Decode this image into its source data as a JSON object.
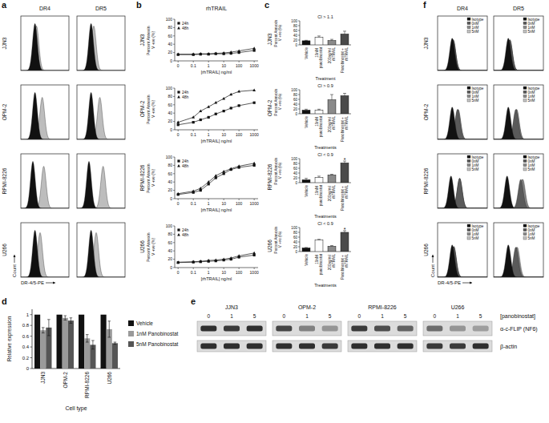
{
  "chart_data": [
    {
      "panel": "a",
      "type": "flow_histogram",
      "columns": [
        "DR4",
        "DR5"
      ],
      "x_label": "DR-4/5-PE",
      "y_label": "Count",
      "log": "x",
      "xlim": [
        1,
        10000
      ],
      "ylim": [
        0,
        110
      ],
      "series": [
        {
          "color": "#111111"
        },
        {
          "color": "#bdbdbd"
        }
      ],
      "rows": [
        {
          "label": "JJN3",
          "histograms": [
            {
              "peaks": [
                15,
                20
              ],
              "heights": [
                95,
                90
              ]
            },
            {
              "peaks": [
                15,
                25
              ],
              "heights": [
                95,
                90
              ]
            }
          ]
        },
        {
          "label": "OPM-2",
          "histograms": [
            {
              "peaks": [
                15,
                60
              ],
              "heights": [
                95,
                85
              ]
            },
            {
              "peaks": [
                15,
                80
              ],
              "heights": [
                95,
                85
              ]
            }
          ]
        },
        {
          "label": "RPMI-8226",
          "histograms": [
            {
              "peaks": [
                10,
                80
              ],
              "heights": [
                95,
                85
              ]
            },
            {
              "peaks": [
                10,
                150
              ],
              "heights": [
                95,
                85
              ]
            }
          ]
        },
        {
          "label": "U266",
          "histograms": [
            {
              "peaks": [
                15,
                40
              ],
              "heights": [
                95,
                90
              ]
            },
            {
              "peaks": [
                15,
                40
              ],
              "heights": [
                95,
                90
              ]
            }
          ]
        }
      ]
    },
    {
      "panel": "b",
      "type": "line",
      "title": "rhTRAIL",
      "x_label": "[rhTRAIL] ng/ml",
      "y_label": "Percent Annexin V +ve (%)",
      "log": "x",
      "xlim": [
        0.006,
        1800
      ],
      "xticks": [
        {
          "value": 0.01,
          "label": "0"
        },
        0.1,
        1,
        10,
        100,
        1000
      ],
      "ylim": [
        0,
        100
      ],
      "yticks": [
        0,
        20,
        40,
        60,
        80,
        100
      ],
      "legend": "upper left",
      "x": [
        0.01,
        0.1,
        0.3,
        1,
        3,
        10,
        30,
        100,
        1000
      ],
      "rows": [
        {
          "label": "JJN3",
          "series": [
            {
              "name": "24h",
              "marker": "square",
              "values": [
                15,
                15,
                16,
                16,
                17,
                17,
                18,
                20,
                25
              ]
            },
            {
              "name": "48h",
              "marker": "triangle",
              "values": [
                16,
                16,
                17,
                17,
                18,
                19,
                21,
                24,
                30
              ]
            }
          ]
        },
        {
          "label": "OPM-2",
          "series": [
            {
              "name": "24h",
              "marker": "square",
              "values": [
                12,
                18,
                24,
                30,
                38,
                45,
                52,
                58,
                65
              ]
            },
            {
              "name": "48h",
              "marker": "triangle",
              "values": [
                18,
                30,
                45,
                55,
                65,
                75,
                85,
                92,
                95
              ]
            }
          ]
        },
        {
          "label": "RPMI-8226",
          "series": [
            {
              "name": "24h",
              "marker": "square",
              "values": [
                10,
                15,
                20,
                35,
                50,
                60,
                70,
                75,
                80
              ]
            },
            {
              "name": "48h",
              "marker": "triangle",
              "values": [
                12,
                18,
                25,
                40,
                55,
                65,
                72,
                78,
                85
              ]
            }
          ]
        },
        {
          "label": "U266",
          "series": [
            {
              "name": "24h",
              "marker": "square",
              "values": [
                12,
                13,
                14,
                15,
                16,
                18,
                20,
                25,
                30
              ]
            },
            {
              "name": "48h",
              "marker": "triangle",
              "values": [
                13,
                14,
                15,
                17,
                18,
                20,
                23,
                28,
                35
              ]
            }
          ]
        }
      ]
    },
    {
      "panel": "c",
      "type": "bar",
      "categories": [
        "Vehicle",
        "10nM panobinostat",
        "200ng/ml rhTRAIL",
        "Panobinostat + rhTRAIL"
      ],
      "colors": [
        "#111111",
        "#ffffff",
        "#8a8a8a",
        "#4a4a4a"
      ],
      "y_label": "Percent Annexin V +ve (%)",
      "ylim": [
        0,
        100
      ],
      "yticks": [
        0,
        20,
        40,
        60,
        80,
        100
      ],
      "rows": [
        {
          "label": "JJN3",
          "ci": "CI > 1.1",
          "x_label": "Treatment",
          "values": [
            17,
            32,
            18,
            45
          ],
          "errors": [
            2,
            5,
            5,
            12
          ]
        },
        {
          "label": "OPM-2",
          "ci": "CI > 0.9",
          "x_label": "Treatments",
          "values": [
            15,
            15,
            58,
            75
          ],
          "errors": [
            4,
            4,
            22,
            10
          ]
        },
        {
          "label": "RPMI-8226",
          "ci": "CI < 0.9",
          "x_label": "Treatments",
          "values": [
            12,
            22,
            32,
            82
          ],
          "errors": [
            6,
            5,
            3,
            8
          ],
          "annotations": [
            null,
            null,
            null,
            "*"
          ]
        },
        {
          "label": "U266",
          "ci": "CI < 0.9",
          "x_label": "Treatments",
          "values": [
            15,
            48,
            22,
            80
          ],
          "errors": [
            2,
            3,
            3,
            7
          ],
          "annotations": [
            null,
            null,
            null,
            "*"
          ]
        }
      ]
    },
    {
      "panel": "d",
      "type": "bar",
      "categories": [
        "JJN3",
        "OPM-2",
        "RPMI-8226",
        "U266"
      ],
      "x_label": "Cell type",
      "y_label": "Relative expression",
      "ylim": [
        0,
        1.1
      ],
      "yticks": [
        0,
        0.2,
        0.4,
        0.6,
        0.8,
        1
      ],
      "legend": "right",
      "series": [
        {
          "name": "Vehicle",
          "color": "#111111",
          "values": [
            1,
            1,
            1,
            1
          ]
        },
        {
          "name": "1nM Panobinostat",
          "color": "#9a9a9a",
          "values": [
            0.71,
            0.94,
            0.56,
            0.73
          ],
          "errors": [
            0.05,
            0.04,
            0.07,
            0.15
          ]
        },
        {
          "name": "5nM Panobinostat",
          "color": "#555555",
          "values": [
            0.76,
            0.89,
            0.44,
            0.47
          ],
          "errors": [
            0.15,
            0.05,
            0.08,
            0.02
          ]
        }
      ]
    },
    {
      "panel": "e",
      "type": "western_blot",
      "lane_title": "[panobinostat]",
      "lanes": [
        0,
        1,
        5
      ],
      "row_labels": [
        "α-c-FLIP (NF6)",
        "β-actin"
      ],
      "groups": [
        {
          "label": "JJN3",
          "bands": [
            [
              0.85,
              0.8,
              0.85
            ],
            [
              0.85,
              0.85,
              0.85
            ]
          ]
        },
        {
          "label": "OPM-2",
          "bands": [
            [
              0.75,
              0.45,
              0.35
            ],
            [
              0.85,
              0.85,
              0.8
            ]
          ]
        },
        {
          "label": "RPMI-8226",
          "bands": [
            [
              0.8,
              0.7,
              0.6
            ],
            [
              0.85,
              0.85,
              0.85
            ]
          ]
        },
        {
          "label": "U266",
          "bands": [
            [
              0.55,
              0.35,
              0.3
            ],
            [
              0.8,
              0.8,
              0.85
            ]
          ]
        }
      ]
    },
    {
      "panel": "f",
      "type": "flow_histogram",
      "columns": [
        "DR4",
        "DR5"
      ],
      "x_label": "DR-4/5-PE",
      "y_label": "Count",
      "log": "x",
      "xlim": [
        1,
        10000
      ],
      "ylim": [
        0,
        160
      ],
      "series": [
        {
          "name": "Isotype",
          "color": "#111111"
        },
        {
          "name": "0nM",
          "color": "#5a5a5a"
        },
        {
          "name": "1nM",
          "color": "#8c8c8c"
        },
        {
          "name": "5nM",
          "color": "#c4c4c4"
        }
      ],
      "rows": [
        {
          "label": "JJN3",
          "histograms": [
            {
              "peaks": [
                15,
                18,
                18,
                18
              ],
              "heights": [
                95,
                90,
                90,
                90
              ]
            },
            {
              "peaks": [
                15,
                20,
                20,
                20
              ],
              "heights": [
                95,
                90,
                90,
                90
              ]
            }
          ]
        },
        {
          "label": "OPM-2",
          "histograms": [
            {
              "peaks": [
                15,
                40,
                45,
                45
              ],
              "heights": [
                95,
                88,
                88,
                88
              ]
            },
            {
              "peaks": [
                15,
                60,
                70,
                70
              ],
              "heights": [
                95,
                88,
                88,
                88
              ]
            }
          ]
        },
        {
          "label": "RPMI-8226",
          "histograms": [
            {
              "peaks": [
                12,
                60,
                60,
                60
              ],
              "heights": [
                95,
                88,
                88,
                88
              ]
            },
            {
              "peaks": [
                12,
                150,
                200,
                220
              ],
              "heights": [
                95,
                85,
                85,
                85
              ]
            }
          ]
        },
        {
          "label": "U266",
          "histograms": [
            {
              "peaks": [
                15,
                20,
                20,
                20
              ],
              "heights": [
                95,
                90,
                90,
                90
              ]
            },
            {
              "peaks": [
                15,
                60,
                70,
                80
              ],
              "heights": [
                95,
                88,
                88,
                88
              ]
            }
          ]
        }
      ]
    }
  ]
}
